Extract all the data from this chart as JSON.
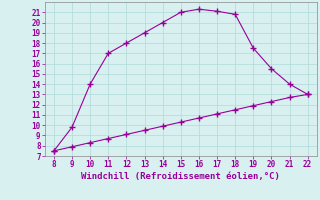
{
  "line1_x": [
    8,
    9,
    10,
    11,
    12,
    13,
    14,
    15,
    16,
    17,
    18,
    19,
    20,
    21,
    22
  ],
  "line1_y": [
    7.5,
    9.8,
    14,
    17,
    18,
    19,
    20,
    21,
    21.3,
    21.1,
    20.8,
    17.5,
    15.5,
    14,
    13
  ],
  "line2_x": [
    8,
    9,
    10,
    11,
    12,
    13,
    14,
    15,
    16,
    17,
    18,
    19,
    20,
    21,
    22
  ],
  "line2_y": [
    7.5,
    7.9,
    8.3,
    8.7,
    9.1,
    9.5,
    9.9,
    10.3,
    10.7,
    11.1,
    11.5,
    11.9,
    12.3,
    12.7,
    13.0
  ],
  "line_color": "#990099",
  "bg_color": "#d8f0f0",
  "grid_color": "#b0d8d8",
  "xlabel": "Windchill (Refroidissement éolien,°C)",
  "xlim": [
    7.5,
    22.5
  ],
  "ylim": [
    7,
    22
  ],
  "xticks": [
    8,
    9,
    10,
    11,
    12,
    13,
    14,
    15,
    16,
    17,
    18,
    19,
    20,
    21,
    22
  ],
  "yticks": [
    7,
    8,
    9,
    10,
    11,
    12,
    13,
    14,
    15,
    16,
    17,
    18,
    19,
    20,
    21
  ],
  "marker": "+",
  "linewidth": 0.8,
  "markersize": 4,
  "markeredgewidth": 1.0,
  "xlabel_color": "#990099",
  "tick_color": "#990099",
  "tick_fontsize": 5.5,
  "xlabel_fontsize": 6.5
}
